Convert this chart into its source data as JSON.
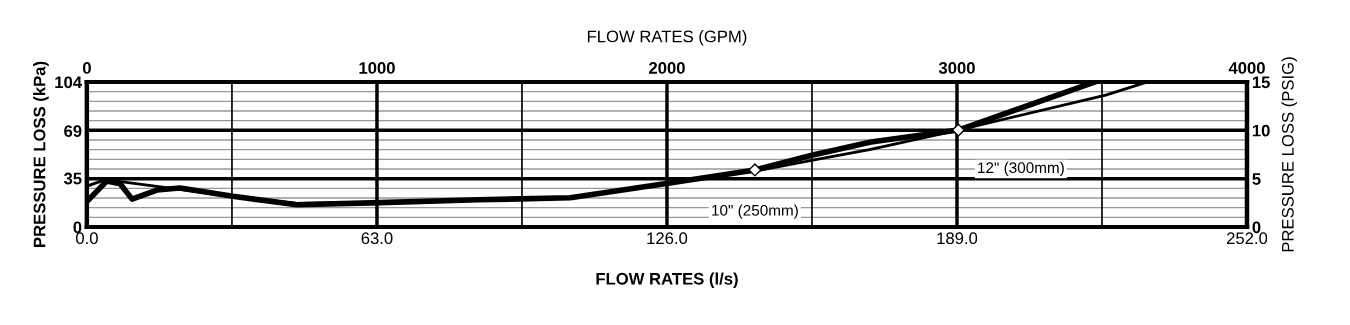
{
  "chart_data": {
    "type": "line",
    "xlabel": "FLOW RATES (l/s)",
    "x2label": "FLOW RATES (GPM)",
    "ylabel": "PRESSURE LOSS (kPa)",
    "y2label": "PRESSURE LOSS (PSIG)",
    "xlim": [
      0,
      252
    ],
    "xticks": [
      {
        "value": 0,
        "label": "0.0"
      },
      {
        "value": 31.5,
        "label": null
      },
      {
        "value": 63,
        "label": "63.0"
      },
      {
        "value": 94.5,
        "label": null
      },
      {
        "value": 126,
        "label": "126.0"
      },
      {
        "value": 157.5,
        "label": null
      },
      {
        "value": 189,
        "label": "189.0"
      },
      {
        "value": 220.5,
        "label": null
      },
      {
        "value": 252,
        "label": "252.0"
      }
    ],
    "x2lim": [
      0,
      4000
    ],
    "x2ticks": [
      0,
      1000,
      2000,
      3000,
      4000
    ],
    "ylim": [
      0,
      104
    ],
    "yticks": [
      0,
      35,
      69,
      104
    ],
    "y2lim": [
      0,
      15
    ],
    "y2ticks": [
      0,
      {
        "value": 1,
        "label": null
      },
      {
        "value": 2,
        "label": null
      },
      {
        "value": 3,
        "label": null
      },
      {
        "value": 4,
        "label": null
      },
      5,
      {
        "value": 6,
        "label": null
      },
      {
        "value": 7,
        "label": null
      },
      {
        "value": 8,
        "label": null
      },
      {
        "value": 9,
        "label": null
      },
      10,
      {
        "value": 11,
        "label": null
      },
      {
        "value": 12,
        "label": null
      },
      {
        "value": 13,
        "label": null
      },
      {
        "value": 14,
        "label": null
      },
      15
    ],
    "grid": true,
    "legend": false,
    "line_style": "solid",
    "series": [
      {
        "color": "#000000",
        "x": [
          0.5,
          4.3,
          7.2,
          9.8,
          15.2,
          20.2,
          31.7,
          45.6,
          63.7,
          85,
          105,
          126.6,
          145.1,
          157.7,
          170.3,
          189.3,
          218.9
        ],
        "values": [
          20,
          33,
          31,
          20,
          26.5,
          28,
          22,
          16,
          17.5,
          19.5,
          21,
          31.5,
          40.9,
          51.6,
          61,
          69.5,
          104
        ]
      },
      {
        "color": "#000000",
        "x": [
          0.6,
          4,
          31.7,
          45.6,
          63.7,
          105,
          126,
          145,
          157.7,
          170,
          189.3,
          221.3,
          230.3
        ],
        "values": [
          30,
          34,
          22,
          17,
          17.8,
          20.8,
          31,
          40,
          48,
          55.5,
          69.5,
          94.6,
          104
        ]
      }
    ],
    "annotations": [
      {
        "text": "10\" (250mm)",
        "x": 145.1,
        "y": 40.9
      },
      {
        "text": "12\" (300mm)",
        "x": 189.3,
        "y": 69.5
      }
    ]
  }
}
